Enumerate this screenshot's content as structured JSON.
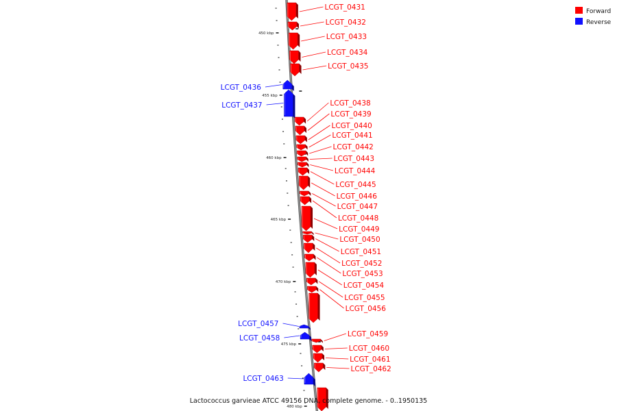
{
  "caption": "Lactococcus garvieae ATCC 49156 DNA, complete genome. - 0..1950135",
  "colors": {
    "forward": "#ff0000",
    "reverse": "#1010ff",
    "backbone": "#888888"
  },
  "legend": [
    {
      "label": "Forward",
      "color": "#ff0000"
    },
    {
      "label": "Reverse",
      "color": "#1010ff"
    }
  ],
  "scale_labels": [
    "450 kbp",
    "455 kbp",
    "460 kbp",
    "465 kbp",
    "470 kbp",
    "475 kbp",
    "480 kbp"
  ],
  "genes": [
    {
      "name": "LCGT_0431",
      "strand": "forward"
    },
    {
      "name": "LCGT_0432",
      "strand": "forward"
    },
    {
      "name": "LCGT_0433",
      "strand": "forward"
    },
    {
      "name": "LCGT_0434",
      "strand": "forward"
    },
    {
      "name": "LCGT_0435",
      "strand": "forward"
    },
    {
      "name": "LCGT_0436",
      "strand": "reverse"
    },
    {
      "name": "LCGT_0437",
      "strand": "reverse"
    },
    {
      "name": "LCGT_0438",
      "strand": "forward"
    },
    {
      "name": "LCGT_0439",
      "strand": "forward"
    },
    {
      "name": "LCGT_0440",
      "strand": "forward"
    },
    {
      "name": "LCGT_0441",
      "strand": "forward"
    },
    {
      "name": "LCGT_0442",
      "strand": "forward"
    },
    {
      "name": "LCGT_0443",
      "strand": "forward"
    },
    {
      "name": "LCGT_0444",
      "strand": "forward"
    },
    {
      "name": "LCGT_0445",
      "strand": "forward"
    },
    {
      "name": "LCGT_0446",
      "strand": "forward"
    },
    {
      "name": "LCGT_0447",
      "strand": "forward"
    },
    {
      "name": "LCGT_0448",
      "strand": "forward"
    },
    {
      "name": "LCGT_0449",
      "strand": "forward"
    },
    {
      "name": "LCGT_0450",
      "strand": "forward"
    },
    {
      "name": "LCGT_0451",
      "strand": "forward"
    },
    {
      "name": "LCGT_0452",
      "strand": "forward"
    },
    {
      "name": "LCGT_0453",
      "strand": "forward"
    },
    {
      "name": "LCGT_0454",
      "strand": "forward"
    },
    {
      "name": "LCGT_0455",
      "strand": "forward"
    },
    {
      "name": "LCGT_0456",
      "strand": "forward"
    },
    {
      "name": "LCGT_0457",
      "strand": "reverse"
    },
    {
      "name": "LCGT_0458",
      "strand": "reverse"
    },
    {
      "name": "LCGT_0459",
      "strand": "forward"
    },
    {
      "name": "LCGT_0460",
      "strand": "forward"
    },
    {
      "name": "LCGT_0461",
      "strand": "forward"
    },
    {
      "name": "LCGT_0462",
      "strand": "forward"
    },
    {
      "name": "LCGT_0463",
      "strand": "reverse"
    }
  ]
}
